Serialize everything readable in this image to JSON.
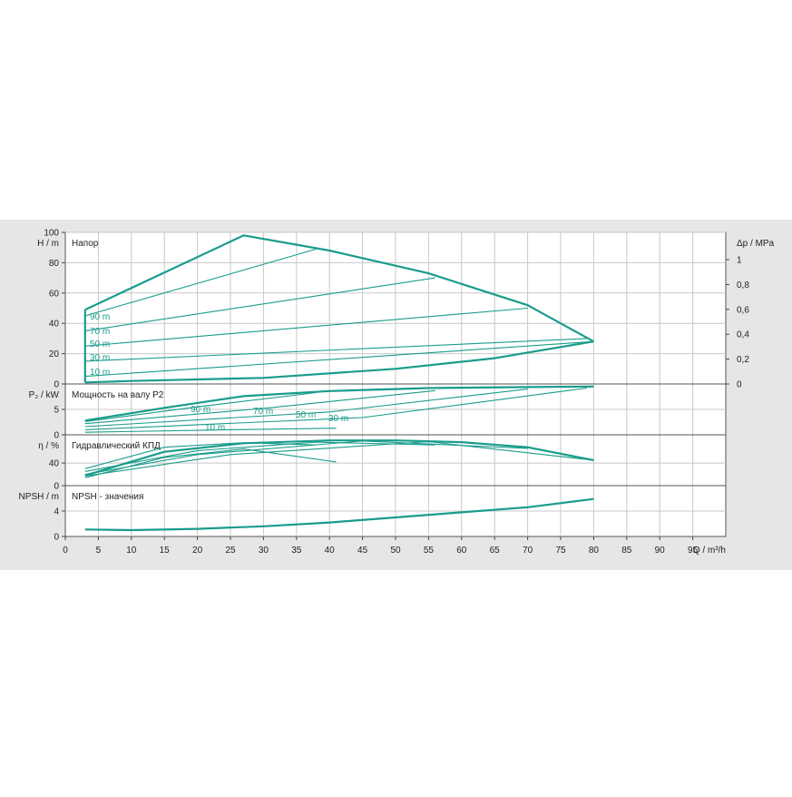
{
  "colors": {
    "background": "#e6e6e6",
    "plot_background": "#ffffff",
    "grid": "#c8c8c8",
    "curve": "#1a9c8c"
  },
  "chart_data": [
    {
      "type": "line",
      "id": "head",
      "title": "Напор",
      "ylabel": "H / m",
      "ylabel_right": "Δp / MPa",
      "ylim": [
        0,
        100
      ],
      "yticks": [
        0,
        20,
        40,
        60,
        80,
        100
      ],
      "yticks_right": [
        "0",
        "0,2",
        "0,4",
        "0,6",
        "0,8",
        "1"
      ],
      "curve_labels": [
        "90 m",
        "70 m",
        "50 m",
        "30 m",
        "10 m"
      ],
      "series": [
        {
          "name": "",
          "role": "envelope",
          "x": [
            3,
            27,
            40,
            55,
            70,
            80
          ],
          "y": [
            49,
            98,
            88,
            73,
            52,
            28
          ]
        },
        {
          "name": "",
          "role": "envelope",
          "x": [
            3,
            10,
            30,
            50,
            65,
            80
          ],
          "y": [
            1,
            2,
            4,
            10,
            17,
            28
          ]
        },
        {
          "name": "",
          "role": "envelope",
          "x": [
            3,
            3
          ],
          "y": [
            1,
            49
          ]
        },
        {
          "name": "90 m",
          "x": [
            3,
            38
          ],
          "y": [
            45,
            89
          ]
        },
        {
          "name": "70 m",
          "x": [
            3,
            56
          ],
          "y": [
            35,
            70
          ]
        },
        {
          "name": "50 m",
          "x": [
            3,
            70
          ],
          "y": [
            25,
            50
          ]
        },
        {
          "name": "30 m",
          "x": [
            3,
            79
          ],
          "y": [
            15,
            30
          ]
        },
        {
          "name": "10 m",
          "x": [
            3,
            80
          ],
          "y": [
            5,
            28
          ]
        }
      ]
    },
    {
      "type": "line",
      "id": "power",
      "title": "Мощность на валу P2",
      "ylabel": "P₂ / kW",
      "ylim": [
        0,
        10
      ],
      "yticks": [
        0,
        5
      ],
      "curve_labels": [
        "90 m",
        "70 m",
        "50 m",
        "30 m",
        "10 m"
      ],
      "series": [
        {
          "name": "",
          "role": "envelope",
          "x": [
            3,
            15,
            27,
            40,
            55,
            70,
            80
          ],
          "y": [
            2.8,
            5.3,
            7.6,
            8.6,
            9.2,
            9.4,
            9.5
          ]
        },
        {
          "name": "90 m",
          "x": [
            3,
            20,
            38
          ],
          "y": [
            2.6,
            5.5,
            8.3
          ]
        },
        {
          "name": "70 m",
          "x": [
            3,
            30,
            56
          ],
          "y": [
            2.2,
            5.2,
            8.7
          ]
        },
        {
          "name": "50 m",
          "x": [
            3,
            40,
            70
          ],
          "y": [
            1.6,
            4.5,
            9.0
          ]
        },
        {
          "name": "30 m",
          "x": [
            3,
            45,
            79
          ],
          "y": [
            1.0,
            3.4,
            9.2
          ]
        },
        {
          "name": "10 m",
          "x": [
            3,
            25,
            41
          ],
          "y": [
            0.5,
            1.0,
            1.3
          ]
        }
      ]
    },
    {
      "type": "line",
      "id": "efficiency",
      "title": "Гидравлический КПД",
      "ylabel": "η / %",
      "ylim": [
        0,
        90
      ],
      "yticks": [
        0,
        40
      ],
      "series": [
        {
          "name": "",
          "role": "envelope",
          "x": [
            3,
            15,
            27,
            40,
            50,
            60,
            70,
            80
          ],
          "y": [
            18,
            60,
            75,
            80,
            80,
            77,
            68,
            45
          ]
        },
        {
          "name": "90 m",
          "x": [
            3,
            15,
            27,
            38
          ],
          "y": [
            30,
            68,
            76,
            72
          ]
        },
        {
          "name": "70 m",
          "x": [
            3,
            20,
            38,
            56
          ],
          "y": [
            25,
            62,
            77,
            72
          ]
        },
        {
          "name": "50 m",
          "x": [
            3,
            20,
            45,
            70
          ],
          "y": [
            20,
            55,
            79,
            66
          ]
        },
        {
          "name": "30 m",
          "x": [
            3,
            25,
            55,
            80
          ],
          "y": [
            17,
            55,
            78,
            45
          ]
        },
        {
          "name": "10 m",
          "x": [
            3,
            15,
            27,
            41
          ],
          "y": [
            14,
            50,
            65,
            42
          ]
        }
      ]
    },
    {
      "type": "line",
      "id": "npsh",
      "title": "NPSH - значения",
      "ylabel": "NPSH / m",
      "ylim": [
        0,
        8
      ],
      "yticks": [
        0,
        4
      ],
      "series": [
        {
          "name": "",
          "x": [
            3,
            10,
            20,
            30,
            40,
            50,
            60,
            70,
            80
          ],
          "y": [
            1.1,
            1.0,
            1.2,
            1.6,
            2.2,
            3.0,
            3.8,
            4.6,
            5.9
          ]
        }
      ]
    }
  ],
  "x_axis": {
    "label": "Q / m³/h",
    "xlim": [
      0,
      100
    ],
    "ticks": [
      0,
      5,
      10,
      15,
      20,
      25,
      30,
      35,
      40,
      45,
      50,
      55,
      60,
      65,
      70,
      75,
      80,
      85,
      90,
      95
    ]
  }
}
